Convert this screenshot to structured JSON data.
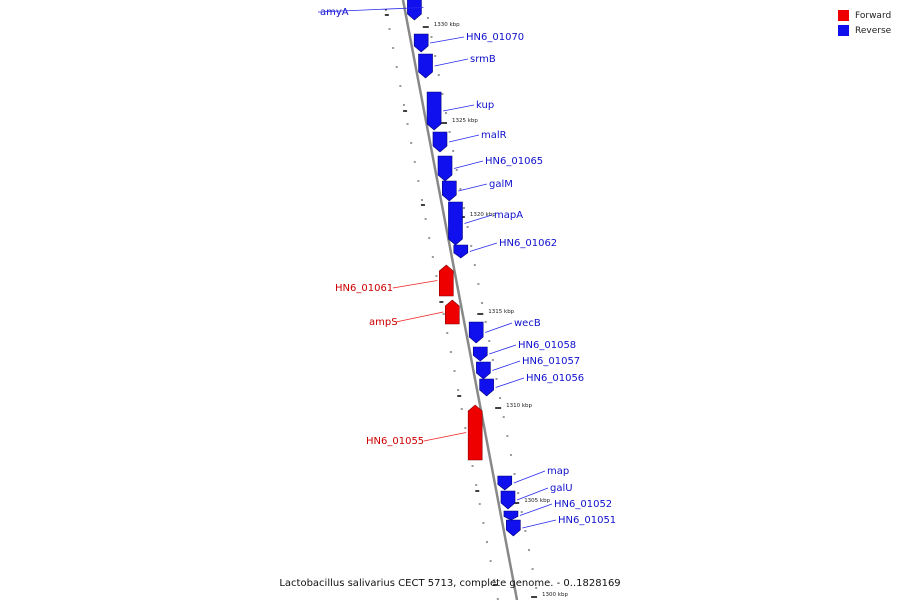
{
  "legend": {
    "forward_label": "Forward",
    "reverse_label": "Reverse",
    "forward_color": "#ee0000",
    "reverse_color": "#1010ee"
  },
  "caption": "Lactobacillus salivarius CECT 5713, complete genome. - 0..1828169",
  "ticks": [
    "1330 kbp",
    "1325 kbp",
    "1320 kbp",
    "1315 kbp",
    "1310 kbp",
    "1305 kbp",
    "1300 kbp"
  ],
  "genes": [
    {
      "name": "amyA",
      "strand": "reverse"
    },
    {
      "name": "HN6_01070",
      "strand": "reverse"
    },
    {
      "name": "srmB",
      "strand": "reverse"
    },
    {
      "name": "kup",
      "strand": "reverse"
    },
    {
      "name": "malR",
      "strand": "reverse"
    },
    {
      "name": "HN6_01065",
      "strand": "reverse"
    },
    {
      "name": "galM",
      "strand": "reverse"
    },
    {
      "name": "mapA",
      "strand": "reverse"
    },
    {
      "name": "HN6_01062",
      "strand": "reverse"
    },
    {
      "name": "HN6_01061",
      "strand": "forward"
    },
    {
      "name": "ampS",
      "strand": "forward"
    },
    {
      "name": "wecB",
      "strand": "reverse"
    },
    {
      "name": "HN6_01058",
      "strand": "reverse"
    },
    {
      "name": "HN6_01057",
      "strand": "reverse"
    },
    {
      "name": "HN6_01056",
      "strand": "reverse"
    },
    {
      "name": "HN6_01055",
      "strand": "forward"
    },
    {
      "name": "map",
      "strand": "reverse"
    },
    {
      "name": "galU",
      "strand": "reverse"
    },
    {
      "name": "HN6_01052",
      "strand": "reverse"
    },
    {
      "name": "HN6_01051",
      "strand": "reverse"
    }
  ]
}
